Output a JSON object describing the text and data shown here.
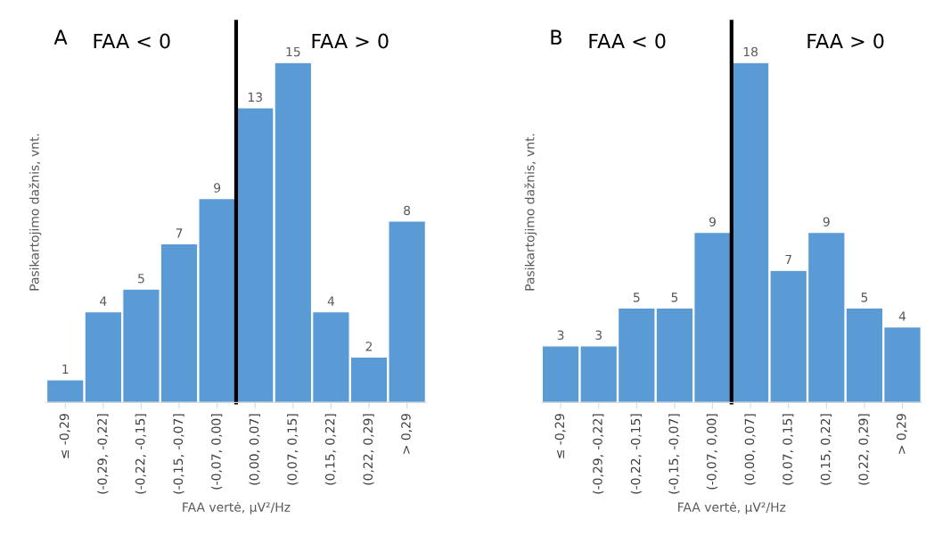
{
  "chart_data": [
    {
      "type": "bar",
      "title": "A",
      "ylabel": "Pasikartojimo dažnis, vnt.",
      "xlabel": "FAA vertė, µV²/Hz",
      "categories": [
        "≤ -0,29",
        "(-0,29, -0,22]",
        "(-0,22, -0,15]",
        "(-0,15, -0,07]",
        "(-0,07, 0,00]",
        "(0,00, 0,07]",
        "(0,07, 0,15]",
        "(0,15, 0,22]",
        "(0,22, 0,29]",
        "> 0,29"
      ],
      "values": [
        1,
        4,
        5,
        7,
        9,
        13,
        15,
        4,
        2,
        8
      ],
      "color": "#5b9bd5",
      "data_labels": true,
      "grid": false,
      "legend": false,
      "annotations": [
        "FAA < 0",
        "FAA > 0"
      ]
    },
    {
      "type": "bar",
      "title": "B",
      "ylabel": "Pasikartojimo dažnis, vnt.",
      "xlabel": "FAA vertė, µV²/Hz",
      "categories": [
        "≤ -0,29",
        "(-0,29, -0,22]",
        "(-0,22, -0,15]",
        "(-0,15, -0,07]",
        "(-0,07, 0,00]",
        "(0,00, 0,07]",
        "(0,07, 0,15]",
        "(0,15, 0,22]",
        "(0,22, 0,29]",
        "> 0,29"
      ],
      "values": [
        3,
        3,
        5,
        5,
        9,
        18,
        7,
        9,
        5,
        4
      ],
      "color": "#5b9bd5",
      "data_labels": true,
      "grid": false,
      "legend": false,
      "annotations": [
        "FAA < 0",
        "FAA > 0"
      ]
    }
  ]
}
